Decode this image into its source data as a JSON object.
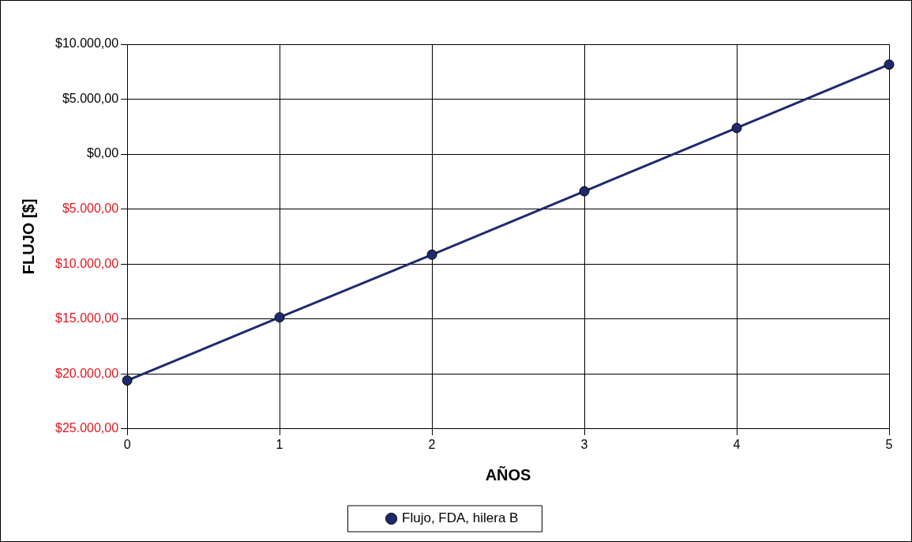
{
  "chart_data": {
    "type": "line",
    "xlabel": "AÑOS",
    "ylabel": "FLUJO [$]",
    "x": [
      0,
      1,
      2,
      3,
      4,
      5
    ],
    "series": [
      {
        "name": "Flujo, FDA, hilera B",
        "color": "#1f2a6e",
        "values": [
          -20600,
          -14850,
          -9150,
          -3380,
          2380,
          8150
        ]
      }
    ],
    "xlim": [
      0,
      5
    ],
    "xticks": [
      0,
      1,
      2,
      3,
      4,
      5
    ],
    "ylim": [
      -25000,
      10000
    ],
    "yticks": [
      {
        "value": -25000,
        "label": "$25.000,00"
      },
      {
        "value": -20000,
        "label": "$20.000,00"
      },
      {
        "value": -15000,
        "label": "$15.000,00"
      },
      {
        "value": -10000,
        "label": "$10.000,00"
      },
      {
        "value": -5000,
        "label": "$5.000,00"
      },
      {
        "value": 0,
        "label": "$0,00"
      },
      {
        "value": 5000,
        "label": "$5.000,00"
      },
      {
        "value": 10000,
        "label": "$10.000,00"
      }
    ],
    "grid": true,
    "legend": "bottom",
    "marker": "circle",
    "line_style": "solid"
  }
}
